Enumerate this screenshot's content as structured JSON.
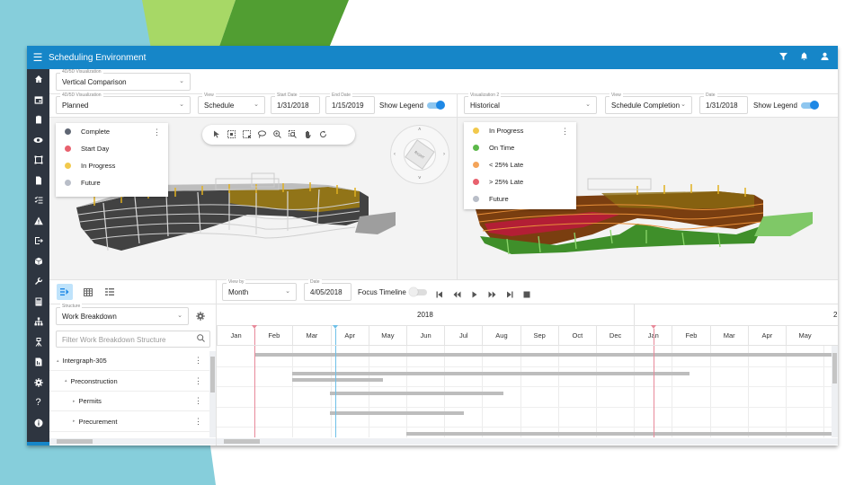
{
  "app": {
    "title": "Scheduling Environment",
    "colors": {
      "titlebar": "#1686c8",
      "rail": "#2e3540",
      "accent": "#1e88e5"
    }
  },
  "header_icons": [
    "filter-icon",
    "bell-icon",
    "user-icon"
  ],
  "rail_icons": [
    "home-icon",
    "calendar-icon",
    "clipboard-icon",
    "eye-icon",
    "bounding-box-icon",
    "document-icon",
    "checklist-icon",
    "warning-icon",
    "export-icon",
    "cube-icon",
    "wrench-icon",
    "calculator-icon",
    "hierarchy-icon",
    "survey-icon",
    "report-icon",
    "gear-icon",
    "help-icon",
    "info-icon"
  ],
  "top_field": {
    "label": "4D/5D Visualization",
    "value": "Vertical Comparison"
  },
  "left_viz": {
    "viz_label": "4D/5D Visualization",
    "viz_value": "Planned",
    "view_label": "View",
    "view_value": "Schedule",
    "start_label": "Start Date",
    "start_value": "1/31/2018",
    "end_label": "End Date",
    "end_value": "1/15/2019",
    "show_legend": "Show Legend",
    "legend_on": true,
    "legend": [
      {
        "label": "Complete",
        "color": "#5f6673"
      },
      {
        "label": "Start Day",
        "color": "#e8616e"
      },
      {
        "label": "In Progress",
        "color": "#f2c94c"
      },
      {
        "label": "Future",
        "color": "#b9bec8"
      }
    ]
  },
  "right_viz": {
    "viz_label": "Visualization 2",
    "viz_value": "Historical",
    "view_label": "View",
    "view_value": "Schedule Completion",
    "date_label": "Date",
    "date_value": "1/31/2018",
    "show_legend": "Show Legend",
    "legend_on": true,
    "legend": [
      {
        "label": "In Progress",
        "color": "#f2c94c"
      },
      {
        "label": "On Time",
        "color": "#5cb84a"
      },
      {
        "label": "< 25% Late",
        "color": "#f4a45a"
      },
      {
        "label": "> 25% Late",
        "color": "#e8616e"
      },
      {
        "label": "Future",
        "color": "#b9bec8"
      }
    ]
  },
  "viewer_tools": [
    "select-icon",
    "box-select-icon",
    "area-select-icon",
    "lasso-icon",
    "zoom-icon",
    "zoom-area-icon",
    "pan-hand-icon",
    "rotate-icon"
  ],
  "navcube": {
    "face_top": "RIGHT",
    "face_front": "TOP"
  },
  "timeline": {
    "view_by_label": "View by",
    "view_by_value": "Month",
    "date_label": "Date",
    "date_value": "4/05/2018",
    "focus_label": "Focus Timeline",
    "focus_on": false,
    "year": "2018",
    "year_next_partial": "2",
    "months": [
      "Jan",
      "Feb",
      "Mar",
      "Apr",
      "May",
      "Jun",
      "Jul",
      "Aug",
      "Sep",
      "Oct",
      "Dec",
      "Jan",
      "Feb",
      "Mar",
      "Apr",
      "May"
    ],
    "playback": [
      "skip-start-icon",
      "rewind-icon",
      "play-icon",
      "fast-forward-icon",
      "skip-end-icon",
      "stop-icon"
    ]
  },
  "structure": {
    "label": "Structure",
    "value": "Work Breakdown",
    "filter_placeholder": "Filter Work Breakdown Structure",
    "rows": [
      {
        "name": "Intergraph-305",
        "level": 0
      },
      {
        "name": "Preconstruction",
        "level": 1
      },
      {
        "name": "Permits",
        "level": 2
      },
      {
        "name": "Precurement",
        "level": 2
      }
    ]
  }
}
